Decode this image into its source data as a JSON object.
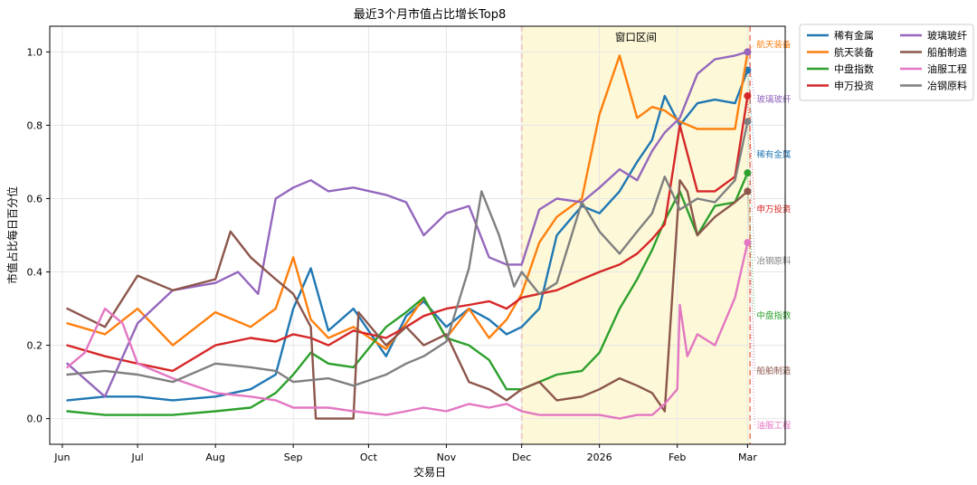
{
  "chart_data": {
    "type": "line",
    "title": "最近3个月市值占比增长Top8",
    "xlabel": "交易日",
    "ylabel": "市值占比每日百分位",
    "xlim": [
      "2025-05-27",
      "2026-03-16"
    ],
    "ylim": [
      -0.07,
      1.07
    ],
    "yticks": [
      0.0,
      0.2,
      0.4,
      0.6,
      0.8,
      1.0
    ],
    "ytick_labels": [
      "0.0",
      "0.2",
      "0.4",
      "0.6",
      "0.8",
      "1.0"
    ],
    "xticks": [
      {
        "date": "2025-06-01",
        "label": "Jun"
      },
      {
        "date": "2025-07-01",
        "label": "Jul"
      },
      {
        "date": "2025-08-01",
        "label": "Aug"
      },
      {
        "date": "2025-09-01",
        "label": "Sep"
      },
      {
        "date": "2025-10-01",
        "label": "Oct"
      },
      {
        "date": "2025-11-01",
        "label": "Nov"
      },
      {
        "date": "2025-12-01",
        "label": "Dec"
      },
      {
        "date": "2026-01-01",
        "label": "2026"
      },
      {
        "date": "2026-02-01",
        "label": "Feb"
      },
      {
        "date": "2026-03-01",
        "label": "Mar"
      }
    ],
    "grid": true,
    "legend_position": "outside-top-right",
    "legend_columns": 2,
    "window": {
      "start": "2025-12-01",
      "end": "2026-03-02",
      "label": "窗口区间",
      "fill_color": "#fdf9d8",
      "line_color": "#f08070"
    },
    "series": [
      {
        "name": "稀有金属",
        "color": "#1f77b4",
        "width": 2.4,
        "end_label_y": 0.72,
        "x": [
          "2025-06-03",
          "2025-06-18",
          "2025-07-01",
          "2025-07-15",
          "2025-08-01",
          "2025-08-15",
          "2025-08-25",
          "2025-09-01",
          "2025-09-08",
          "2025-09-15",
          "2025-09-25",
          "2025-10-08",
          "2025-10-16",
          "2025-10-23",
          "2025-11-01",
          "2025-11-10",
          "2025-11-18",
          "2025-11-25",
          "2025-12-01",
          "2025-12-08",
          "2025-12-15",
          "2025-12-25",
          "2026-01-01",
          "2026-01-09",
          "2026-01-16",
          "2026-01-22",
          "2026-01-27",
          "2026-02-02",
          "2026-02-09",
          "2026-02-16",
          "2026-02-24",
          "2026-03-01"
        ],
        "y": [
          0.05,
          0.06,
          0.06,
          0.05,
          0.06,
          0.08,
          0.12,
          0.3,
          0.41,
          0.24,
          0.3,
          0.17,
          0.28,
          0.32,
          0.25,
          0.3,
          0.27,
          0.23,
          0.25,
          0.3,
          0.5,
          0.58,
          0.56,
          0.62,
          0.7,
          0.76,
          0.88,
          0.8,
          0.86,
          0.87,
          0.86,
          0.95
        ]
      },
      {
        "name": "航天装备",
        "color": "#ff7f0e",
        "width": 2.4,
        "end_label_y": 1.02,
        "x": [
          "2025-06-03",
          "2025-06-18",
          "2025-07-01",
          "2025-07-15",
          "2025-08-01",
          "2025-08-15",
          "2025-08-25",
          "2025-09-01",
          "2025-09-08",
          "2025-09-15",
          "2025-09-25",
          "2025-10-08",
          "2025-10-16",
          "2025-10-23",
          "2025-11-01",
          "2025-11-10",
          "2025-11-18",
          "2025-11-25",
          "2025-12-01",
          "2025-12-08",
          "2025-12-15",
          "2025-12-25",
          "2026-01-01",
          "2026-01-09",
          "2026-01-16",
          "2026-01-22",
          "2026-01-27",
          "2026-02-02",
          "2026-02-09",
          "2026-02-16",
          "2026-02-24",
          "2026-03-01"
        ],
        "y": [
          0.26,
          0.23,
          0.3,
          0.2,
          0.29,
          0.25,
          0.3,
          0.44,
          0.27,
          0.22,
          0.25,
          0.19,
          0.26,
          0.33,
          0.22,
          0.3,
          0.22,
          0.27,
          0.34,
          0.48,
          0.55,
          0.6,
          0.83,
          0.99,
          0.82,
          0.85,
          0.84,
          0.81,
          0.79,
          0.79,
          0.79,
          1.0
        ]
      },
      {
        "name": "中盘指数",
        "color": "#2ca02c",
        "width": 2.4,
        "end_label_y": 0.28,
        "x": [
          "2025-06-03",
          "2025-06-18",
          "2025-07-01",
          "2025-07-15",
          "2025-08-01",
          "2025-08-15",
          "2025-08-25",
          "2025-09-01",
          "2025-09-08",
          "2025-09-15",
          "2025-09-25",
          "2025-10-08",
          "2025-10-16",
          "2025-10-23",
          "2025-11-01",
          "2025-11-10",
          "2025-11-18",
          "2025-11-25",
          "2025-12-01",
          "2025-12-08",
          "2025-12-15",
          "2025-12-25",
          "2026-01-01",
          "2026-01-09",
          "2026-01-16",
          "2026-01-22",
          "2026-01-27",
          "2026-02-02",
          "2026-02-09",
          "2026-02-16",
          "2026-02-24",
          "2026-03-01"
        ],
        "y": [
          0.02,
          0.01,
          0.01,
          0.01,
          0.02,
          0.03,
          0.07,
          0.12,
          0.18,
          0.15,
          0.14,
          0.25,
          0.29,
          0.33,
          0.22,
          0.2,
          0.16,
          0.08,
          0.08,
          0.1,
          0.12,
          0.13,
          0.18,
          0.3,
          0.38,
          0.46,
          0.54,
          0.62,
          0.5,
          0.58,
          0.59,
          0.67
        ]
      },
      {
        "name": "申万投资",
        "color": "#d62728",
        "width": 2.4,
        "end_label_y": 0.57,
        "x": [
          "2025-06-03",
          "2025-06-18",
          "2025-07-01",
          "2025-07-15",
          "2025-08-01",
          "2025-08-15",
          "2025-08-25",
          "2025-09-01",
          "2025-09-08",
          "2025-09-15",
          "2025-09-25",
          "2025-10-08",
          "2025-10-16",
          "2025-10-23",
          "2025-11-01",
          "2025-11-10",
          "2025-11-18",
          "2025-11-25",
          "2025-12-01",
          "2025-12-08",
          "2025-12-15",
          "2025-12-25",
          "2026-01-01",
          "2026-01-09",
          "2026-01-16",
          "2026-01-22",
          "2026-01-27",
          "2026-02-02",
          "2026-02-09",
          "2026-02-16",
          "2026-02-24",
          "2026-03-01"
        ],
        "y": [
          0.2,
          0.17,
          0.15,
          0.13,
          0.2,
          0.22,
          0.21,
          0.23,
          0.22,
          0.2,
          0.24,
          0.22,
          0.25,
          0.28,
          0.3,
          0.31,
          0.32,
          0.3,
          0.33,
          0.34,
          0.35,
          0.38,
          0.4,
          0.42,
          0.45,
          0.49,
          0.53,
          0.8,
          0.62,
          0.62,
          0.66,
          0.88
        ]
      },
      {
        "name": "玻璃玻纤",
        "color": "#9467bd",
        "width": 2.4,
        "end_label_y": 0.87,
        "x": [
          "2025-06-03",
          "2025-06-18",
          "2025-07-01",
          "2025-07-15",
          "2025-08-01",
          "2025-08-10",
          "2025-08-18",
          "2025-08-25",
          "2025-09-01",
          "2025-09-08",
          "2025-09-15",
          "2025-09-25",
          "2025-10-08",
          "2025-10-16",
          "2025-10-23",
          "2025-11-01",
          "2025-11-10",
          "2025-11-18",
          "2025-11-25",
          "2025-12-01",
          "2025-12-08",
          "2025-12-15",
          "2025-12-25",
          "2026-01-01",
          "2026-01-09",
          "2026-01-16",
          "2026-01-22",
          "2026-01-27",
          "2026-02-02",
          "2026-02-09",
          "2026-02-16",
          "2026-02-24",
          "2026-03-01"
        ],
        "y": [
          0.15,
          0.06,
          0.26,
          0.35,
          0.37,
          0.4,
          0.34,
          0.6,
          0.63,
          0.65,
          0.62,
          0.63,
          0.61,
          0.59,
          0.5,
          0.56,
          0.58,
          0.44,
          0.42,
          0.42,
          0.57,
          0.6,
          0.59,
          0.63,
          0.68,
          0.65,
          0.73,
          0.78,
          0.82,
          0.94,
          0.98,
          0.99,
          1.0
        ]
      },
      {
        "name": "船舶制造",
        "color": "#8c564b",
        "width": 2.4,
        "end_label_y": 0.13,
        "x": [
          "2025-06-03",
          "2025-06-18",
          "2025-07-01",
          "2025-07-15",
          "2025-08-01",
          "2025-08-07",
          "2025-08-15",
          "2025-08-25",
          "2025-09-01",
          "2025-09-08",
          "2025-09-10",
          "2025-09-18",
          "2025-09-25",
          "2025-09-27",
          "2025-10-08",
          "2025-10-16",
          "2025-10-23",
          "2025-11-01",
          "2025-11-10",
          "2025-11-18",
          "2025-11-25",
          "2025-12-01",
          "2025-12-08",
          "2025-12-15",
          "2025-12-25",
          "2026-01-01",
          "2026-01-09",
          "2026-01-16",
          "2026-01-22",
          "2026-01-27",
          "2026-02-02",
          "2026-02-05",
          "2026-02-09",
          "2026-02-16",
          "2026-02-24",
          "2026-03-01"
        ],
        "y": [
          0.3,
          0.25,
          0.39,
          0.35,
          0.38,
          0.51,
          0.44,
          0.38,
          0.34,
          0.25,
          0.0,
          0.0,
          0.0,
          0.29,
          0.2,
          0.25,
          0.2,
          0.23,
          0.1,
          0.08,
          0.05,
          0.08,
          0.1,
          0.05,
          0.06,
          0.08,
          0.11,
          0.09,
          0.07,
          0.02,
          0.65,
          0.62,
          0.5,
          0.55,
          0.59,
          0.62
        ]
      },
      {
        "name": "油服工程",
        "color": "#e377c2",
        "width": 2.4,
        "end_label_y": -0.02,
        "x": [
          "2025-06-03",
          "2025-06-10",
          "2025-06-18",
          "2025-06-25",
          "2025-07-01",
          "2025-07-15",
          "2025-08-01",
          "2025-08-15",
          "2025-08-25",
          "2025-09-01",
          "2025-09-15",
          "2025-09-25",
          "2025-10-08",
          "2025-10-16",
          "2025-10-23",
          "2025-11-01",
          "2025-11-10",
          "2025-11-18",
          "2025-11-25",
          "2025-12-01",
          "2025-12-08",
          "2025-12-15",
          "2025-12-25",
          "2026-01-01",
          "2026-01-09",
          "2026-01-16",
          "2026-01-22",
          "2026-01-27",
          "2026-02-01",
          "2026-02-02",
          "2026-02-05",
          "2026-02-09",
          "2026-02-16",
          "2026-02-24",
          "2026-03-01"
        ],
        "y": [
          0.14,
          0.18,
          0.3,
          0.26,
          0.15,
          0.11,
          0.07,
          0.06,
          0.05,
          0.03,
          0.03,
          0.02,
          0.01,
          0.02,
          0.03,
          0.02,
          0.04,
          0.03,
          0.04,
          0.02,
          0.01,
          0.01,
          0.01,
          0.01,
          0.0,
          0.01,
          0.01,
          0.04,
          0.08,
          0.31,
          0.17,
          0.23,
          0.2,
          0.33,
          0.48
        ]
      },
      {
        "name": "冶钢原料",
        "color": "#7f7f7f",
        "width": 2.4,
        "end_label_y": 0.43,
        "x": [
          "2025-06-03",
          "2025-06-18",
          "2025-07-01",
          "2025-07-15",
          "2025-08-01",
          "2025-08-15",
          "2025-08-25",
          "2025-09-01",
          "2025-09-15",
          "2025-09-25",
          "2025-10-08",
          "2025-10-16",
          "2025-10-23",
          "2025-11-01",
          "2025-11-10",
          "2025-11-15",
          "2025-11-22",
          "2025-11-28",
          "2025-12-01",
          "2025-12-08",
          "2025-12-15",
          "2025-12-25",
          "2026-01-01",
          "2026-01-09",
          "2026-01-16",
          "2026-01-22",
          "2026-01-27",
          "2026-02-02",
          "2026-02-09",
          "2026-02-16",
          "2026-02-24",
          "2026-03-01"
        ],
        "y": [
          0.12,
          0.13,
          0.12,
          0.1,
          0.15,
          0.14,
          0.13,
          0.1,
          0.11,
          0.09,
          0.12,
          0.15,
          0.17,
          0.21,
          0.41,
          0.62,
          0.5,
          0.36,
          0.4,
          0.34,
          0.37,
          0.59,
          0.51,
          0.45,
          0.51,
          0.56,
          0.66,
          0.57,
          0.6,
          0.59,
          0.65,
          0.81
        ]
      }
    ]
  }
}
